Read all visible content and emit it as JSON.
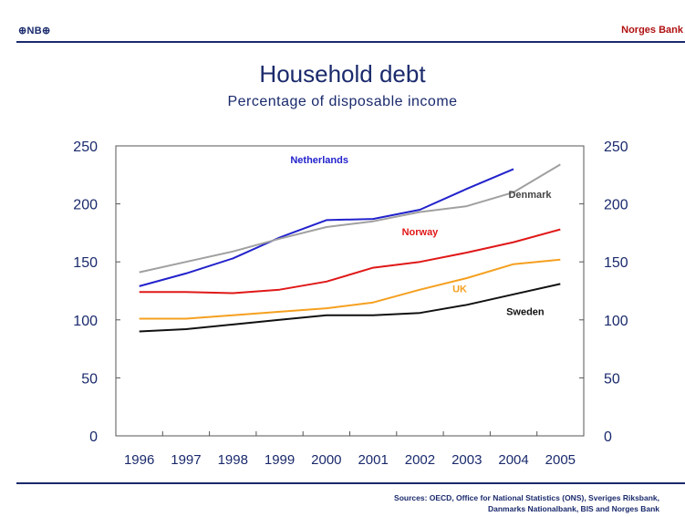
{
  "header": {
    "logo_text": "⊕NB⊕",
    "brand": "Norges Bank"
  },
  "footer": {
    "source_line1": "Sources: OECD, Office for National Statistics (ONS), Sveriges Riksbank,",
    "source_line2": "Danmarks Nationalbank, BIS and Norges Bank"
  },
  "chart_data": {
    "type": "line",
    "title": "Household debt",
    "subtitle": "Percentage of disposable income",
    "xlabel": "",
    "ylabel": "",
    "categories": [
      "1996",
      "1997",
      "1998",
      "1999",
      "2000",
      "2001",
      "2002",
      "2003",
      "2004",
      "2005"
    ],
    "ylim": [
      0,
      250
    ],
    "yticks": [
      0,
      50,
      100,
      150,
      200,
      250
    ],
    "dual_y_axis": true,
    "grid": false,
    "legend": "inline labels",
    "series": [
      {
        "name": "Netherlands",
        "color": "#2222cc",
        "values": [
          129,
          140,
          153,
          171,
          186,
          187,
          195,
          213,
          230,
          null
        ]
      },
      {
        "name": "Denmark",
        "color": "#a0a0a0",
        "values": [
          141,
          150,
          159,
          170,
          180,
          185,
          193,
          198,
          210,
          234
        ]
      },
      {
        "name": "Norway",
        "color": "#e01818",
        "values": [
          124,
          124,
          123,
          126,
          133,
          145,
          150,
          158,
          167,
          178
        ]
      },
      {
        "name": "UK",
        "color": "#f5a020",
        "values": [
          101,
          101,
          104,
          107,
          110,
          115,
          126,
          136,
          148,
          152
        ]
      },
      {
        "name": "Sweden",
        "color": "#111111",
        "values": [
          90,
          92,
          96,
          100,
          104,
          104,
          106,
          113,
          122,
          131
        ]
      }
    ]
  }
}
